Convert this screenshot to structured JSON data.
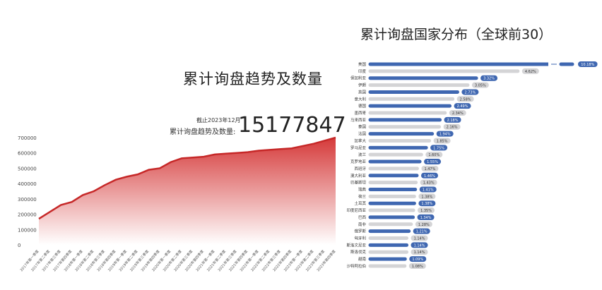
{
  "left": {
    "title": "累计询盘趋势及数量",
    "asof": "截止2023年12月",
    "total_label": "累计询盘趋势及数量:",
    "total_value": "15177847"
  },
  "right": {
    "title": "累计询盘国家分布（全球前30）"
  },
  "colors": {
    "line": "#c62828",
    "fill_top": "#d32f2f",
    "bar_blue": "#3f67b1",
    "bar_gray": "#d4d4d6"
  },
  "chart_data": [
    {
      "type": "area",
      "title": "",
      "ylim": [
        0,
        700000
      ],
      "yticks": [
        0,
        100000,
        200000,
        300000,
        400000,
        500000,
        600000,
        700000
      ],
      "grid": false,
      "categories": [
        "2017年第一季度",
        "2017年第二季度",
        "2017年第三季度",
        "2017年第四季度",
        "2018年第一季度",
        "2018年第二季度",
        "2018年第三季度",
        "2018年第四季度",
        "2019年第一季度",
        "2019年第二季度",
        "2019年第三季度",
        "2019年第四季度",
        "2020年第一季度",
        "2020年第二季度",
        "2020年第三季度",
        "2020年第四季度",
        "2021年第一季度",
        "2021年第二季度",
        "2021年第三季度",
        "2021年第四季度",
        "2022年第一季度",
        "2022年第二季度",
        "2022年第三季度",
        "2022年第四季度",
        "2023年第一季度",
        "2023年第二季度",
        "2023年第三季度",
        "2023年第四季度"
      ],
      "values": [
        170000,
        215000,
        260000,
        280000,
        325000,
        350000,
        390000,
        425000,
        445000,
        460000,
        490000,
        500000,
        540000,
        565000,
        570000,
        575000,
        590000,
        595000,
        600000,
        605000,
        615000,
        620000,
        625000,
        630000,
        645000,
        660000,
        680000,
        700000
      ]
    },
    {
      "type": "bar",
      "orientation": "horizontal",
      "title": "累计询盘国家分布（全球前30）",
      "axis_break_on_first": true,
      "categories": [
        "美国",
        "印度",
        "保加利亚",
        "伊朗",
        "英国",
        "意大利",
        "德国",
        "墨西哥",
        "马来西亚",
        "泰国",
        "法国",
        "加拿大",
        "罗马尼亚",
        "波兰",
        "克罗地亚",
        "西班牙",
        "澳大利亚",
        "巴基斯坦",
        "瑞典",
        "荷兰",
        "土耳其",
        "印度尼西亚",
        "巴西",
        "南非",
        "俄罗斯",
        "匈牙利",
        "斯洛文尼亚",
        "斯洛伐克",
        "越南",
        "沙特阿拉伯"
      ],
      "values": [
        10.18,
        4.62,
        3.32,
        3.05,
        2.73,
        2.58,
        2.49,
        2.34,
        2.18,
        2.16,
        1.94,
        1.85,
        1.75,
        1.6,
        1.55,
        1.47,
        1.46,
        1.43,
        1.41,
        1.38,
        1.38,
        1.35,
        1.34,
        1.28,
        1.21,
        1.14,
        1.14,
        1.14,
        1.09,
        1.08
      ],
      "labels": [
        "10.18%",
        "4.62%",
        "3.32%",
        "3.05%",
        "2.73%",
        "2.58%",
        "2.49%",
        "2.34%",
        "2.18%",
        "2.16%",
        "1.94%",
        "1.85%",
        "1.75%",
        "1.60%",
        "1.55%",
        "1.47%",
        "1.46%",
        "1.43%",
        "1.41%",
        "1.38%",
        "1.38%",
        "1.35%",
        "1.34%",
        "1.28%",
        "1.21%",
        "1.14%",
        "1.14%",
        "1.14%",
        "1.09%",
        "1.08%"
      ]
    }
  ]
}
